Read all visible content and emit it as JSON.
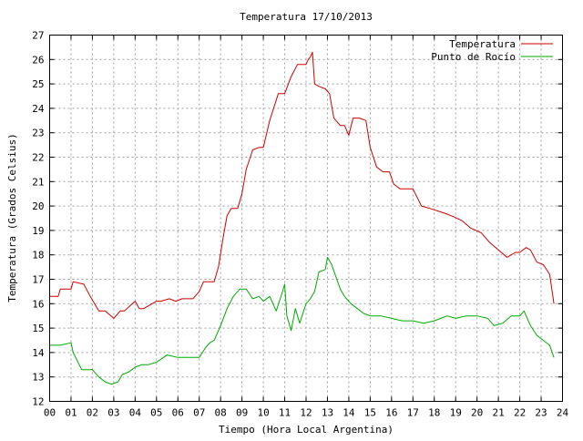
{
  "chart_data": {
    "type": "line",
    "title": "Temperatura 17/10/2013",
    "xlabel": "Tiempo (Hora Local Argentina)",
    "ylabel": "Temperatura (Grados Celsius)",
    "xlim": [
      0,
      24
    ],
    "ylim": [
      12,
      27
    ],
    "x_ticks": [
      "00",
      "01",
      "02",
      "03",
      "04",
      "05",
      "06",
      "07",
      "08",
      "09",
      "10",
      "11",
      "12",
      "13",
      "14",
      "15",
      "16",
      "17",
      "18",
      "19",
      "20",
      "21",
      "22",
      "23",
      "24"
    ],
    "y_ticks": [
      "12",
      "13",
      "14",
      "15",
      "16",
      "17",
      "18",
      "19",
      "20",
      "21",
      "22",
      "23",
      "24",
      "25",
      "26",
      "27"
    ],
    "grid": true,
    "legend_position": "top-right",
    "series": [
      {
        "name": "Temperatura",
        "color": "#cc0000",
        "x": [
          0,
          0.4,
          0.5,
          1.0,
          1.1,
          1.6,
          1.9,
          2.3,
          2.6,
          3.0,
          3.3,
          3.5,
          4.0,
          4.2,
          4.4,
          5.0,
          5.2,
          5.6,
          5.9,
          6.2,
          6.7,
          7.0,
          7.2,
          7.7,
          7.9,
          8.1,
          8.3,
          8.5,
          8.8,
          9.0,
          9.2,
          9.5,
          9.8,
          10.0,
          10.3,
          10.7,
          11.0,
          11.3,
          11.6,
          12.0,
          12.1,
          12.2,
          12.3,
          12.4,
          12.6,
          12.9,
          13.1,
          13.3,
          13.6,
          13.8,
          14.0,
          14.2,
          14.5,
          14.8,
          15.0,
          15.3,
          15.6,
          15.9,
          16.1,
          16.4,
          16.7,
          17.0,
          17.4,
          17.8,
          18.5,
          18.8,
          19.3,
          19.7,
          20.2,
          20.6,
          21.0,
          21.4,
          21.8,
          22.0,
          22.3,
          22.5,
          22.8,
          23.1,
          23.4,
          23.6
        ],
        "y": [
          16.3,
          16.3,
          16.6,
          16.6,
          16.9,
          16.8,
          16.3,
          15.7,
          15.7,
          15.4,
          15.7,
          15.7,
          16.1,
          15.8,
          15.8,
          16.1,
          16.1,
          16.2,
          16.1,
          16.2,
          16.2,
          16.5,
          16.9,
          16.9,
          17.5,
          18.6,
          19.6,
          19.9,
          19.9,
          20.5,
          21.5,
          22.3,
          22.4,
          22.4,
          23.5,
          24.6,
          24.6,
          25.3,
          25.8,
          25.8,
          26.0,
          26.1,
          26.3,
          25.0,
          24.9,
          24.8,
          24.6,
          23.6,
          23.3,
          23.3,
          22.9,
          23.6,
          23.6,
          23.5,
          22.4,
          21.6,
          21.4,
          21.4,
          20.9,
          20.7,
          20.7,
          20.7,
          20.0,
          19.9,
          19.7,
          19.6,
          19.4,
          19.1,
          18.9,
          18.5,
          18.2,
          17.9,
          18.1,
          18.1,
          18.3,
          18.2,
          17.7,
          17.6,
          17.2,
          16.0
        ]
      },
      {
        "name": "Punto de Rocío",
        "color": "#00aa00",
        "x": [
          0,
          0.5,
          1.0,
          1.1,
          1.5,
          2.0,
          2.3,
          2.6,
          2.9,
          3.2,
          3.4,
          3.7,
          4.0,
          4.3,
          4.6,
          5.0,
          5.5,
          6.0,
          6.5,
          7.0,
          7.3,
          7.5,
          7.7,
          8.0,
          8.3,
          8.6,
          8.9,
          9.2,
          9.5,
          9.8,
          10.0,
          10.3,
          10.6,
          10.9,
          11.0,
          11.1,
          11.3,
          11.5,
          11.7,
          12.0,
          12.2,
          12.4,
          12.6,
          12.9,
          13.0,
          13.2,
          13.4,
          13.6,
          13.8,
          14.1,
          14.4,
          14.7,
          15.0,
          15.5,
          16.0,
          16.5,
          17.0,
          17.5,
          18.0,
          18.3,
          18.6,
          19.0,
          19.5,
          20.0,
          20.5,
          20.8,
          21.2,
          21.6,
          22.0,
          22.2,
          22.5,
          22.8,
          23.1,
          23.4,
          23.6
        ],
        "y": [
          14.3,
          14.3,
          14.4,
          14.0,
          13.3,
          13.3,
          13.0,
          12.8,
          12.7,
          12.8,
          13.1,
          13.2,
          13.4,
          13.5,
          13.5,
          13.6,
          13.9,
          13.8,
          13.8,
          13.8,
          14.2,
          14.4,
          14.5,
          15.1,
          15.8,
          16.3,
          16.6,
          16.6,
          16.2,
          16.3,
          16.1,
          16.3,
          15.7,
          16.5,
          16.8,
          15.5,
          14.9,
          15.8,
          15.2,
          16.0,
          16.2,
          16.5,
          17.3,
          17.4,
          17.9,
          17.6,
          17.1,
          16.6,
          16.3,
          16.0,
          15.8,
          15.6,
          15.5,
          15.5,
          15.4,
          15.3,
          15.3,
          15.2,
          15.3,
          15.4,
          15.5,
          15.4,
          15.5,
          15.5,
          15.4,
          15.1,
          15.2,
          15.5,
          15.5,
          15.7,
          15.1,
          14.7,
          14.5,
          14.3,
          13.8
        ]
      }
    ]
  }
}
